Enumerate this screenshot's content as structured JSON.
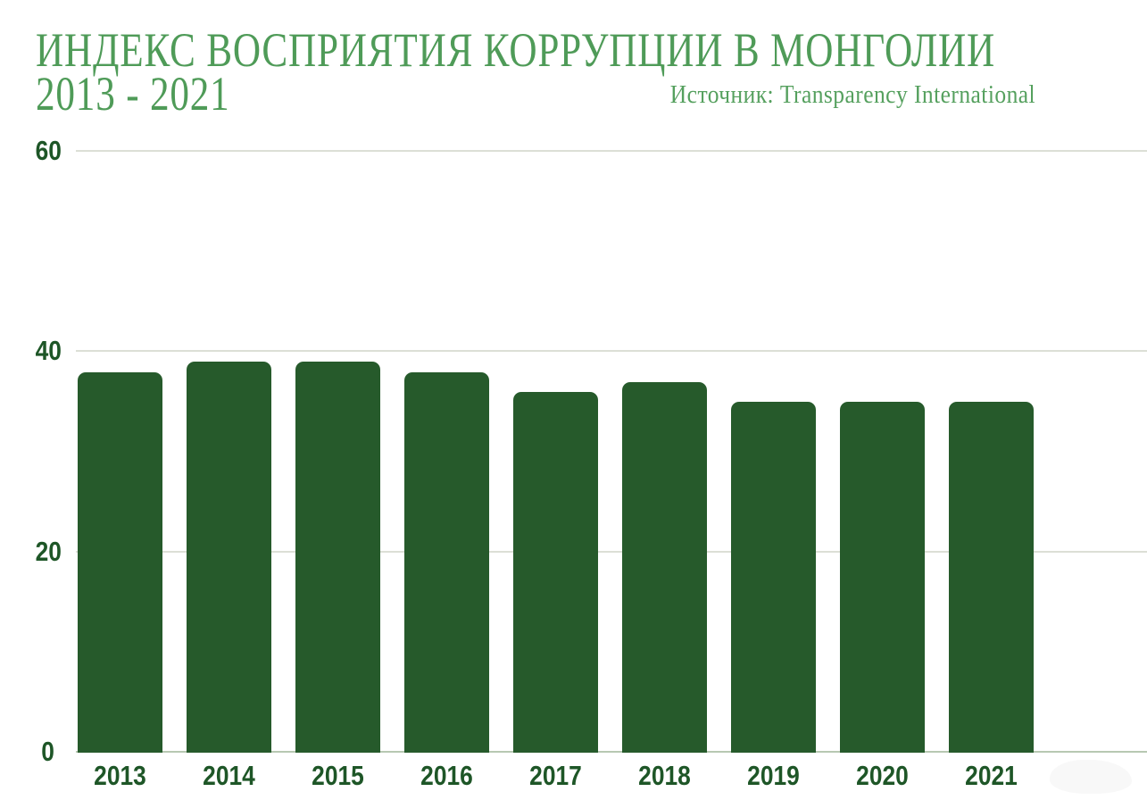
{
  "header": {
    "title_line1": "ИНДЕКС ВОСПРИЯТИЯ КОРРУПЦИИ В МОНГОЛИИ",
    "title_line2": "2013 - 2021",
    "source": "Источник: Transparency International"
  },
  "colors": {
    "title_green": "#4F9B58",
    "subtitle_green": "#55A05E",
    "bar_green": "#265A2B",
    "axis_label_green": "#1E5627",
    "gridline": "#DCDFD6",
    "baseline": "#B7C8B2",
    "background": "#FFFFFF"
  },
  "chart_data": {
    "type": "bar",
    "title": "ИНДЕКС ВОСПРИЯТИЯ КОРРУПЦИИ В МОНГОЛИИ 2013 - 2021",
    "subtitle": "Источник: Transparency International",
    "categories": [
      "2013",
      "2014",
      "2015",
      "2016",
      "2017",
      "2018",
      "2019",
      "2020",
      "2021"
    ],
    "values": [
      38,
      39,
      39,
      38,
      36,
      37,
      35,
      35,
      35
    ],
    "series_name": "Индекс восприятия коррупции",
    "xlabel": "",
    "ylabel": "",
    "yticks": [
      0,
      20,
      40,
      60
    ],
    "ylim": [
      0,
      60
    ],
    "grid": "horizontal",
    "legend": "none"
  }
}
